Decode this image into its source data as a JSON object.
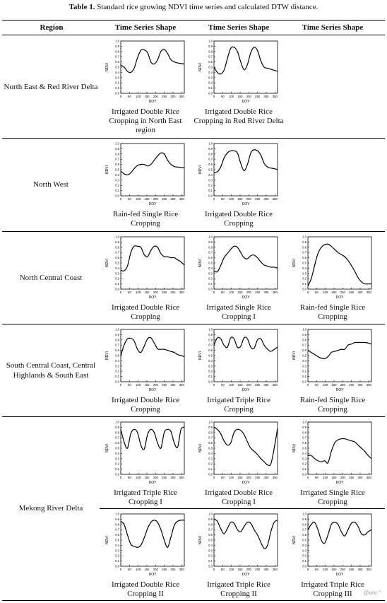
{
  "caption": {
    "number": "Table 1.",
    "text": "Standard rice growing NDVI time series and calculated DTW distance."
  },
  "headers": [
    "Region",
    "Time Series Shape",
    "Time Series Shape",
    "Time Series Shape"
  ],
  "axes": {
    "xlabel": "DOY",
    "ylabel": "NDVI",
    "yticks": [
      "0.0",
      "0.1",
      "0.2",
      "0.3",
      "0.4",
      "0.5",
      "0.6",
      "0.7",
      "0.8",
      "0.9",
      "1.0"
    ],
    "xticks": [
      "0",
      "50",
      "100",
      "150",
      "200",
      "250",
      "300",
      "350"
    ]
  },
  "rows": [
    {
      "region": "North East & Red River Delta",
      "cells": [
        {
          "label": "Irrigated Double Rice Cropping in North East region",
          "y": [
            0.54,
            0.5,
            0.42,
            0.4,
            0.48,
            0.68,
            0.82,
            0.83,
            0.78,
            0.6,
            0.56,
            0.64,
            0.8,
            0.84,
            0.76,
            0.64,
            0.6,
            0.58,
            0.57,
            0.56
          ]
        },
        {
          "label": "Irrigated Double Rice Cropping in Red River Delta",
          "y": [
            0.5,
            0.4,
            0.37,
            0.44,
            0.66,
            0.86,
            0.88,
            0.8,
            0.6,
            0.45,
            0.55,
            0.78,
            0.88,
            0.82,
            0.62,
            0.5,
            0.48,
            0.46,
            0.44,
            0.42
          ]
        }
      ]
    },
    {
      "region": "North West",
      "cells": [
        {
          "label": "Rain-fed Single Rice Cropping",
          "y": [
            0.47,
            0.42,
            0.4,
            0.44,
            0.52,
            0.58,
            0.6,
            0.6,
            0.57,
            0.6,
            0.68,
            0.76,
            0.82,
            0.8,
            0.68,
            0.6,
            0.56,
            0.55,
            0.54,
            0.54
          ]
        },
        {
          "label": "Irrigated Double Rice Cropping",
          "y": [
            0.44,
            0.46,
            0.55,
            0.72,
            0.82,
            0.86,
            0.86,
            0.82,
            0.62,
            0.48,
            0.6,
            0.82,
            0.88,
            0.86,
            0.78,
            0.62,
            0.55,
            0.53,
            0.52,
            0.5
          ]
        }
      ]
    },
    {
      "region": "North Central Coast",
      "cells": [
        {
          "label": "Irrigated Double Rice Cropping",
          "y": [
            0.36,
            0.35,
            0.44,
            0.7,
            0.82,
            0.82,
            0.8,
            0.66,
            0.62,
            0.74,
            0.82,
            0.8,
            0.68,
            0.62,
            0.62,
            0.6,
            0.6,
            0.56,
            0.52,
            0.46
          ]
        },
        {
          "label": "Irrigated Single Rice Cropping I",
          "y": [
            0.35,
            0.33,
            0.45,
            0.6,
            0.68,
            0.76,
            0.82,
            0.8,
            0.7,
            0.6,
            0.58,
            0.64,
            0.65,
            0.6,
            0.52,
            0.46,
            0.44,
            0.42,
            0.42,
            0.4
          ]
        },
        {
          "label": "Rain-fed Single Rice Cropping",
          "y": [
            0.06,
            0.2,
            0.45,
            0.68,
            0.8,
            0.85,
            0.86,
            0.82,
            0.76,
            0.7,
            0.66,
            0.62,
            0.55,
            0.45,
            0.34,
            0.22,
            0.14,
            0.1,
            0.1,
            0.1
          ]
        }
      ]
    },
    {
      "region": "South Central Coast, Central Highlands & South East",
      "cells": [
        {
          "label": "Irrigated Double Rice Cropping",
          "y": [
            0.5,
            0.7,
            0.82,
            0.83,
            0.78,
            0.62,
            0.56,
            0.68,
            0.82,
            0.84,
            0.74,
            0.63,
            0.62,
            0.62,
            0.6,
            0.58,
            0.56,
            0.52,
            0.5,
            0.48
          ]
        },
        {
          "label": "Irrigated Triple Rice Cropping",
          "y": [
            0.7,
            0.84,
            0.82,
            0.7,
            0.66,
            0.84,
            0.82,
            0.66,
            0.68,
            0.84,
            0.82,
            0.66,
            0.64,
            0.8,
            0.82,
            0.7,
            0.62,
            0.58,
            0.62,
            0.66
          ]
        },
        {
          "label": "Rain-fed Single Rice Cropping",
          "y": [
            0.6,
            0.56,
            0.52,
            0.48,
            0.45,
            0.44,
            0.48,
            0.56,
            0.58,
            0.6,
            0.62,
            0.62,
            0.7,
            0.72,
            0.75,
            0.75,
            0.75,
            0.75,
            0.74,
            0.72
          ]
        }
      ]
    },
    {
      "region": "Mekong River Delta",
      "cells": [
        {
          "label": "Irrigated Triple Rice Cropping I",
          "y": [
            0.86,
            0.62,
            0.5,
            0.78,
            0.86,
            0.8,
            0.56,
            0.48,
            0.76,
            0.86,
            0.8,
            0.6,
            0.5,
            0.8,
            0.86,
            0.82,
            0.6,
            0.52,
            0.86,
            0.9
          ]
        },
        {
          "label": "Irrigated Double Rice Cropping I",
          "y": [
            0.9,
            0.86,
            0.78,
            0.64,
            0.56,
            0.6,
            0.8,
            0.86,
            0.84,
            0.76,
            0.62,
            0.5,
            0.44,
            0.38,
            0.3,
            0.24,
            0.18,
            0.2,
            0.5,
            0.88
          ]
        },
        {
          "label": "Irrigated Single Rice Cropping",
          "y": [
            0.36,
            0.36,
            0.3,
            0.26,
            0.24,
            0.26,
            0.22,
            0.44,
            0.6,
            0.66,
            0.68,
            0.68,
            0.66,
            0.64,
            0.62,
            0.56,
            0.5,
            0.44,
            0.36,
            0.3
          ]
        }
      ]
    },
    {
      "region": "",
      "cells": [
        {
          "label": "Irrigated Double Rice Cropping II",
          "y": [
            0.86,
            0.8,
            0.6,
            0.42,
            0.38,
            0.36,
            0.4,
            0.54,
            0.72,
            0.84,
            0.88,
            0.84,
            0.7,
            0.5,
            0.36,
            0.56,
            0.78,
            0.86,
            0.88,
            0.88
          ]
        },
        {
          "label": "Irrigated Triple Rice Cropping II",
          "y": [
            0.9,
            0.86,
            0.72,
            0.62,
            0.72,
            0.84,
            0.82,
            0.7,
            0.66,
            0.76,
            0.84,
            0.82,
            0.7,
            0.6,
            0.46,
            0.34,
            0.4,
            0.66,
            0.84,
            0.88
          ]
        },
        {
          "label": "Irrigated Triple Rice Cropping III",
          "y": [
            0.7,
            0.8,
            0.84,
            0.7,
            0.5,
            0.44,
            0.6,
            0.8,
            0.84,
            0.8,
            0.66,
            0.58,
            0.7,
            0.82,
            0.84,
            0.76,
            0.62,
            0.6,
            0.66,
            0.7
          ]
        }
      ]
    }
  ],
  "watermark": "@ww ^"
}
